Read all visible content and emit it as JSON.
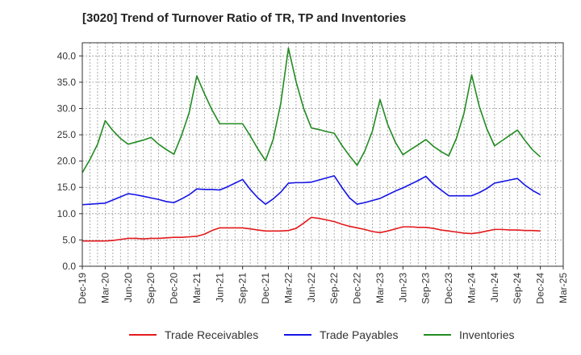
{
  "title": "[3020]  Trend of Turnover Ratio of TR, TP and Inventories",
  "chart_data": {
    "type": "line",
    "title": "[3020]  Trend of Turnover Ratio of TR, TP and Inventories",
    "xlabel": "",
    "ylabel": "",
    "ylim": [
      0,
      42.5
    ],
    "yticks": [
      0,
      5,
      10,
      15,
      20,
      25,
      30,
      35,
      40
    ],
    "ytick_labels": [
      "0.0",
      "5.0",
      "10.0",
      "15.0",
      "20.0",
      "25.0",
      "30.0",
      "35.0",
      "40.0"
    ],
    "xtick_labels": [
      "Dec-19",
      "Mar-20",
      "Jun-20",
      "Sep-20",
      "Dec-20",
      "Mar-21",
      "Jun-21",
      "Sep-21",
      "Dec-21",
      "Mar-22",
      "Jun-22",
      "Sep-22",
      "Dec-22",
      "Mar-23",
      "Jun-23",
      "Sep-23",
      "Dec-23",
      "Mar-24",
      "Jun-24",
      "Sep-24",
      "Dec-24",
      "Mar-25"
    ],
    "x_months": [
      "2019-12",
      "2020-01",
      "2020-02",
      "2020-03",
      "2020-04",
      "2020-05",
      "2020-06",
      "2020-07",
      "2020-08",
      "2020-09",
      "2020-10",
      "2020-11",
      "2020-12",
      "2021-01",
      "2021-02",
      "2021-03",
      "2021-04",
      "2021-05",
      "2021-06",
      "2021-07",
      "2021-08",
      "2021-09",
      "2021-10",
      "2021-11",
      "2021-12",
      "2022-01",
      "2022-02",
      "2022-03",
      "2022-04",
      "2022-05",
      "2022-06",
      "2022-07",
      "2022-08",
      "2022-09",
      "2022-10",
      "2022-11",
      "2022-12",
      "2023-01",
      "2023-02",
      "2023-03",
      "2023-04",
      "2023-05",
      "2023-06",
      "2023-07",
      "2023-08",
      "2023-09",
      "2023-10",
      "2023-11",
      "2023-12",
      "2024-01",
      "2024-02",
      "2024-03",
      "2024-04",
      "2024-05",
      "2024-06",
      "2024-07",
      "2024-08",
      "2024-09",
      "2024-10",
      "2024-11",
      "2024-12"
    ],
    "grid": true,
    "legend_position": "bottom",
    "series": [
      {
        "name": "Trade Receivables",
        "color": "#e31a1c",
        "values": [
          4.8,
          4.8,
          4.8,
          4.8,
          4.9,
          5.1,
          5.3,
          5.3,
          5.2,
          5.3,
          5.3,
          5.4,
          5.5,
          5.5,
          5.6,
          5.7,
          6.1,
          6.8,
          7.3,
          7.3,
          7.3,
          7.3,
          7.1,
          6.9,
          6.7,
          6.7,
          6.7,
          6.8,
          7.2,
          8.2,
          9.3,
          9.1,
          8.8,
          8.5,
          8.0,
          7.6,
          7.3,
          7.0,
          6.6,
          6.4,
          6.7,
          7.1,
          7.5,
          7.5,
          7.4,
          7.4,
          7.2,
          6.9,
          6.7,
          6.5,
          6.3,
          6.2,
          6.4,
          6.7,
          7.0,
          7.0,
          6.9,
          6.9,
          6.8,
          6.8,
          6.7
        ]
      },
      {
        "name": "Trade Payables",
        "color": "#1414e6",
        "values": [
          11.7,
          11.8,
          11.9,
          12.0,
          12.6,
          13.2,
          13.8,
          13.6,
          13.3,
          13.0,
          12.7,
          12.3,
          12.1,
          12.8,
          13.6,
          14.7,
          14.6,
          14.6,
          14.5,
          15.1,
          15.8,
          16.5,
          14.6,
          13.0,
          11.8,
          12.8,
          14.1,
          15.8,
          15.9,
          15.9,
          16.0,
          16.4,
          16.8,
          17.2,
          15.0,
          13.0,
          11.8,
          12.1,
          12.5,
          12.9,
          13.6,
          14.3,
          14.9,
          15.6,
          16.3,
          17.1,
          15.6,
          14.5,
          13.4,
          13.4,
          13.4,
          13.4,
          14.0,
          14.8,
          15.8,
          16.1,
          16.4,
          16.7,
          15.4,
          14.4,
          13.6
        ]
      },
      {
        "name": "Inventories",
        "color": "#228b22",
        "values": [
          17.8,
          20.3,
          23.2,
          27.7,
          25.8,
          24.3,
          23.2,
          23.6,
          24.0,
          24.5,
          23.2,
          22.2,
          21.3,
          24.9,
          29.2,
          36.2,
          32.8,
          29.7,
          27.1,
          27.1,
          27.1,
          27.1,
          24.8,
          22.3,
          20.1,
          24.1,
          31.0,
          41.5,
          35.1,
          30.0,
          26.3,
          26.0,
          25.6,
          25.3,
          23.0,
          21.0,
          19.2,
          21.9,
          25.7,
          31.7,
          27.0,
          23.6,
          21.2,
          22.2,
          23.1,
          24.1,
          22.8,
          21.8,
          21.0,
          24.3,
          29.1,
          36.4,
          30.4,
          26.1,
          22.9,
          23.9,
          24.9,
          25.9,
          23.9,
          22.1,
          20.8
        ]
      }
    ]
  }
}
